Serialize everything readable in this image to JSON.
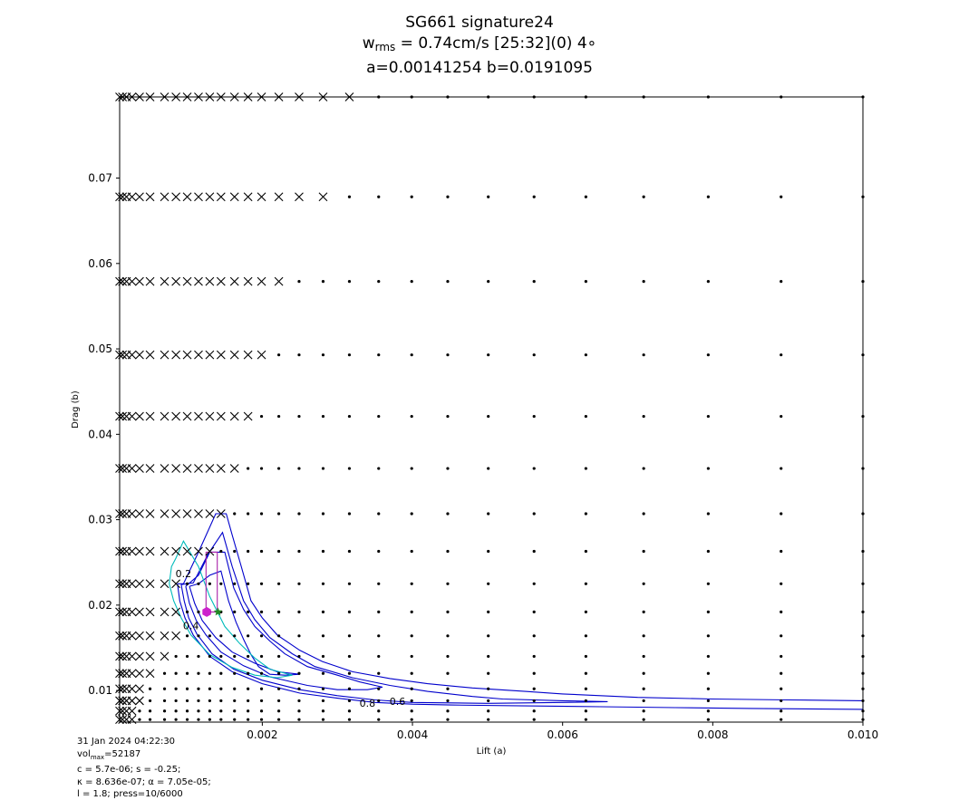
{
  "title": {
    "line1": "SG661 signature24",
    "line2_prefix": "w",
    "line2_sub": "rms",
    "line2_rest": " = 0.74cm/s [25:32](0) 4∘",
    "line3": "a=0.00141254 b=0.0191095"
  },
  "footer": {
    "line1": "31 Jan 2024 04:22:30",
    "line2_prefix": "vol",
    "line2_sub": "max",
    "line2_rest": "=52187",
    "line3": "c = 5.7e-06; s = -0.25;",
    "line4": "κ = 8.636e-07; α = 7.05e-05;",
    "line5": "l = 1.8; press=10/6000"
  },
  "chart_data": {
    "type": "scatter",
    "xlabel": "Lift (a)",
    "ylabel": "Drag (b)",
    "xlim": [
      0.0001,
      0.01
    ],
    "ylim": [
      0.0063,
      0.0795
    ],
    "x_tick_values": [
      0.002,
      0.004,
      0.006,
      0.008,
      0.01
    ],
    "x_tick_labels": [
      "0.002",
      "0.004",
      "0.006",
      "0.008",
      "0.010"
    ],
    "y_tick_values": [
      0.01,
      0.02,
      0.03,
      0.04,
      0.05,
      0.06,
      0.07
    ],
    "y_tick_labels": [
      "0.01",
      "0.02",
      "0.03",
      "0.04",
      "0.05",
      "0.06",
      "0.07"
    ],
    "grid": false,
    "grid_x": [
      0.0001,
      0.000138,
      0.000191,
      0.000264,
      0.000365,
      0.000505,
      0.000698,
      0.00085,
      0.001,
      0.00115,
      0.0013,
      0.00145,
      0.00163,
      0.00181,
      0.00199,
      0.00222,
      0.00249,
      0.00281,
      0.00316,
      0.00355,
      0.00399,
      0.00447,
      0.00501,
      0.00562,
      0.00631,
      0.00708,
      0.00794,
      0.00891,
      0.01
    ],
    "grid_y": [
      0.0795,
      0.0678,
      0.0579,
      0.0493,
      0.0421,
      0.036,
      0.0307,
      0.0263,
      0.0225,
      0.0192,
      0.0164,
      0.014,
      0.012,
      0.0102,
      0.0088,
      0.0076,
      0.0066
    ],
    "x_cross_max_by_row": [
      0.00316,
      0.00281,
      0.00222,
      0.00199,
      0.00181,
      0.00163,
      0.00145,
      0.0013,
      0.00085,
      0.00085,
      0.00085,
      0.000698,
      0.000505,
      0.000365,
      0.000365,
      0.000264,
      0.000264
    ],
    "x_cross_min_by_row": [
      0.0001,
      0.0001,
      0.0001,
      0.0001,
      0.0001,
      0.0001,
      0.0001,
      0.0001,
      0.0001,
      0.0001,
      0.0001,
      0.0001,
      0.0001,
      0.0001,
      0.0001,
      0.0001,
      0.0001
    ],
    "dot_excluded_by_row": [
      [],
      [],
      [],
      [],
      [],
      [],
      [
        0.0013
      ],
      [],
      [],
      [],
      [],
      [],
      [],
      [],
      [],
      [],
      []
    ],
    "markers": [
      {
        "name": "best-fit",
        "shape": "hexagon",
        "x": 0.00126,
        "y": 0.0192,
        "color": "#cc22cc"
      },
      {
        "name": "reference",
        "shape": "star",
        "x": 0.00141,
        "y": 0.0192,
        "color": "#228822"
      }
    ],
    "contours": [
      {
        "label": "0.8",
        "color": "#0000cc",
        "points": [
          [
            0.00087,
            0.0225
          ],
          [
            0.0009,
            0.0205
          ],
          [
            0.00097,
            0.0185
          ],
          [
            0.00108,
            0.0165
          ],
          [
            0.0013,
            0.014
          ],
          [
            0.0016,
            0.0122
          ],
          [
            0.002,
            0.0108
          ],
          [
            0.0025,
            0.0097
          ],
          [
            0.003,
            0.0091
          ],
          [
            0.0035,
            0.0086
          ],
          [
            0.004,
            0.0084
          ],
          [
            0.0045,
            0.0083
          ],
          [
            0.0055,
            0.0082
          ],
          [
            0.0065,
            0.0081
          ],
          [
            0.0075,
            0.008
          ],
          [
            0.0085,
            0.0079
          ],
          [
            0.01,
            0.0078
          ],
          [
            0.01,
            0.0088
          ],
          [
            0.009,
            0.0089
          ],
          [
            0.008,
            0.009
          ],
          [
            0.007,
            0.0092
          ],
          [
            0.006,
            0.0096
          ],
          [
            0.0055,
            0.0099
          ],
          [
            0.0048,
            0.0103
          ],
          [
            0.0042,
            0.0108
          ],
          [
            0.0037,
            0.0114
          ],
          [
            0.0032,
            0.0122
          ],
          [
            0.0028,
            0.0134
          ],
          [
            0.0025,
            0.0147
          ],
          [
            0.0022,
            0.0165
          ],
          [
            0.002,
            0.0185
          ],
          [
            0.00185,
            0.0205
          ],
          [
            0.00172,
            0.0245
          ],
          [
            0.0016,
            0.0282
          ],
          [
            0.00152,
            0.0307
          ],
          [
            0.00138,
            0.0307
          ],
          [
            0.00115,
            0.0262
          ],
          [
            0.00095,
            0.0225
          ],
          [
            0.00087,
            0.0225
          ]
        ]
      },
      {
        "label": "0.6",
        "color": "#0000cc",
        "points": [
          [
            0.00092,
            0.0224
          ],
          [
            0.00096,
            0.0205
          ],
          [
            0.00102,
            0.0185
          ],
          [
            0.00113,
            0.0166
          ],
          [
            0.00133,
            0.0143
          ],
          [
            0.00162,
            0.0125
          ],
          [
            0.002,
            0.0112
          ],
          [
            0.0025,
            0.0101
          ],
          [
            0.003,
            0.0094
          ],
          [
            0.0035,
            0.0089
          ],
          [
            0.004,
            0.0086
          ],
          [
            0.005,
            0.0085
          ],
          [
            0.006,
            0.0086
          ],
          [
            0.0066,
            0.0087
          ],
          [
            0.006,
            0.0088
          ],
          [
            0.0052,
            0.009
          ],
          [
            0.0048,
            0.0093
          ],
          [
            0.0042,
            0.0099
          ],
          [
            0.0037,
            0.0106
          ],
          [
            0.0032,
            0.0115
          ],
          [
            0.0027,
            0.0128
          ],
          [
            0.0024,
            0.0143
          ],
          [
            0.0021,
            0.0162
          ],
          [
            0.0019,
            0.0183
          ],
          [
            0.00175,
            0.0205
          ],
          [
            0.0016,
            0.0245
          ],
          [
            0.00147,
            0.0285
          ],
          [
            0.00128,
            0.026
          ],
          [
            0.00108,
            0.0226
          ],
          [
            0.00092,
            0.0224
          ]
        ]
      },
      {
        "label": "0.4",
        "color": "#0000cc",
        "points": [
          [
            0.00098,
            0.0222
          ],
          [
            0.00103,
            0.0202
          ],
          [
            0.00112,
            0.0182
          ],
          [
            0.00125,
            0.0165
          ],
          [
            0.00145,
            0.0145
          ],
          [
            0.00175,
            0.0129
          ],
          [
            0.0021,
            0.0116
          ],
          [
            0.0026,
            0.0106
          ],
          [
            0.003,
            0.0101
          ],
          [
            0.0034,
            0.0101
          ],
          [
            0.0036,
            0.0104
          ],
          [
            0.0033,
            0.011
          ],
          [
            0.003,
            0.0118
          ],
          [
            0.0026,
            0.0128
          ],
          [
            0.0023,
            0.0143
          ],
          [
            0.0021,
            0.0158
          ],
          [
            0.0019,
            0.0175
          ],
          [
            0.00175,
            0.0195
          ],
          [
            0.00162,
            0.022
          ],
          [
            0.0015,
            0.0262
          ],
          [
            0.0013,
            0.0262
          ],
          [
            0.00115,
            0.0235
          ],
          [
            0.00098,
            0.0222
          ]
        ]
      },
      {
        "label": "0.2",
        "color": "#0000cc",
        "points": [
          [
            0.00103,
            0.0222
          ],
          [
            0.0011,
            0.0202
          ],
          [
            0.0012,
            0.0182
          ],
          [
            0.00138,
            0.0162
          ],
          [
            0.0016,
            0.0145
          ],
          [
            0.0019,
            0.0132
          ],
          [
            0.0022,
            0.0122
          ],
          [
            0.0025,
            0.0119
          ],
          [
            0.0023,
            0.0118
          ],
          [
            0.0021,
            0.0119
          ],
          [
            0.00195,
            0.0128
          ],
          [
            0.00185,
            0.0142
          ],
          [
            0.00175,
            0.016
          ],
          [
            0.00165,
            0.018
          ],
          [
            0.00155,
            0.0205
          ],
          [
            0.00145,
            0.024
          ],
          [
            0.0013,
            0.0235
          ],
          [
            0.00115,
            0.0225
          ],
          [
            0.00103,
            0.0222
          ]
        ]
      },
      {
        "label": "",
        "color": "#00bbbb",
        "points": [
          [
            0.00076,
            0.0225
          ],
          [
            0.00082,
            0.0205
          ],
          [
            0.00092,
            0.0185
          ],
          [
            0.00105,
            0.0165
          ],
          [
            0.0013,
            0.0142
          ],
          [
            0.0016,
            0.0127
          ],
          [
            0.0019,
            0.0118
          ],
          [
            0.0022,
            0.0115
          ],
          [
            0.0024,
            0.0118
          ],
          [
            0.0021,
            0.0125
          ],
          [
            0.0019,
            0.0138
          ],
          [
            0.0017,
            0.0155
          ],
          [
            0.0015,
            0.0175
          ],
          [
            0.0013,
            0.021
          ],
          [
            0.00115,
            0.0245
          ],
          [
            0.00095,
            0.0275
          ],
          [
            0.00085,
            0.0255
          ],
          [
            0.00079,
            0.0245
          ],
          [
            0.00076,
            0.0225
          ]
        ]
      },
      {
        "label": "",
        "color": "#aa22aa",
        "points": [
          [
            0.00125,
            0.0262
          ],
          [
            0.0014,
            0.0262
          ],
          [
            0.0014,
            0.0192
          ],
          [
            0.00125,
            0.0192
          ],
          [
            0.00125,
            0.0262
          ]
        ]
      }
    ],
    "contour_labels": [
      {
        "text": "0.8",
        "x": 0.0034,
        "y": 0.0081
      },
      {
        "text": "0.6",
        "x": 0.0038,
        "y": 0.0083
      },
      {
        "text": "0.4",
        "x": 0.00105,
        "y": 0.0172
      },
      {
        "text": "0.2",
        "x": 0.00095,
        "y": 0.0233
      }
    ]
  }
}
